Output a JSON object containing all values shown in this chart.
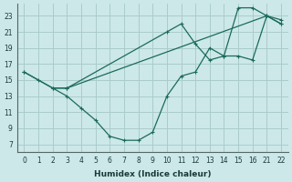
{
  "xlabel": "Humidex (Indice chaleur)",
  "background_color": "#cde8e8",
  "grid_color": "#aacccc",
  "line_color": "#1a6b5a",
  "xlim": [
    -0.5,
    18.5
  ],
  "ylim": [
    6,
    24.5
  ],
  "xtick_positions": [
    0,
    1,
    2,
    3,
    4,
    5,
    6,
    7,
    8,
    9,
    10,
    11,
    12,
    13,
    14,
    15,
    16,
    17,
    18
  ],
  "xtick_labels": [
    "0",
    "1",
    "2",
    "3",
    "4",
    "5",
    "6",
    "7",
    "8",
    "9",
    "10",
    "11",
    "12",
    "13",
    "14",
    "15",
    "16",
    "21",
    "22"
  ],
  "yticks": [
    7,
    9,
    11,
    13,
    15,
    17,
    19,
    21,
    23
  ],
  "line1_x_idx": [
    0,
    1,
    2,
    3,
    17,
    18
  ],
  "line1_y": [
    16,
    15,
    14,
    14,
    23,
    22
  ],
  "line2_x_idx": [
    0,
    3,
    4,
    5,
    6,
    7,
    8,
    9,
    10,
    11,
    12,
    13,
    14,
    15,
    16,
    17,
    18
  ],
  "line2_y": [
    16,
    13,
    11.5,
    10,
    8,
    7.5,
    7.5,
    8.5,
    13,
    15.5,
    16,
    19,
    18,
    18,
    17.5,
    23,
    22.5
  ],
  "line3_x_idx": [
    2,
    3,
    10,
    11,
    12,
    13,
    14,
    15,
    16,
    17,
    18
  ],
  "line3_y": [
    14,
    14,
    21,
    22,
    19.5,
    17.5,
    18,
    24,
    24,
    23,
    22
  ],
  "xlabel_fontsize": 6.5,
  "tick_fontsize": 5.5
}
